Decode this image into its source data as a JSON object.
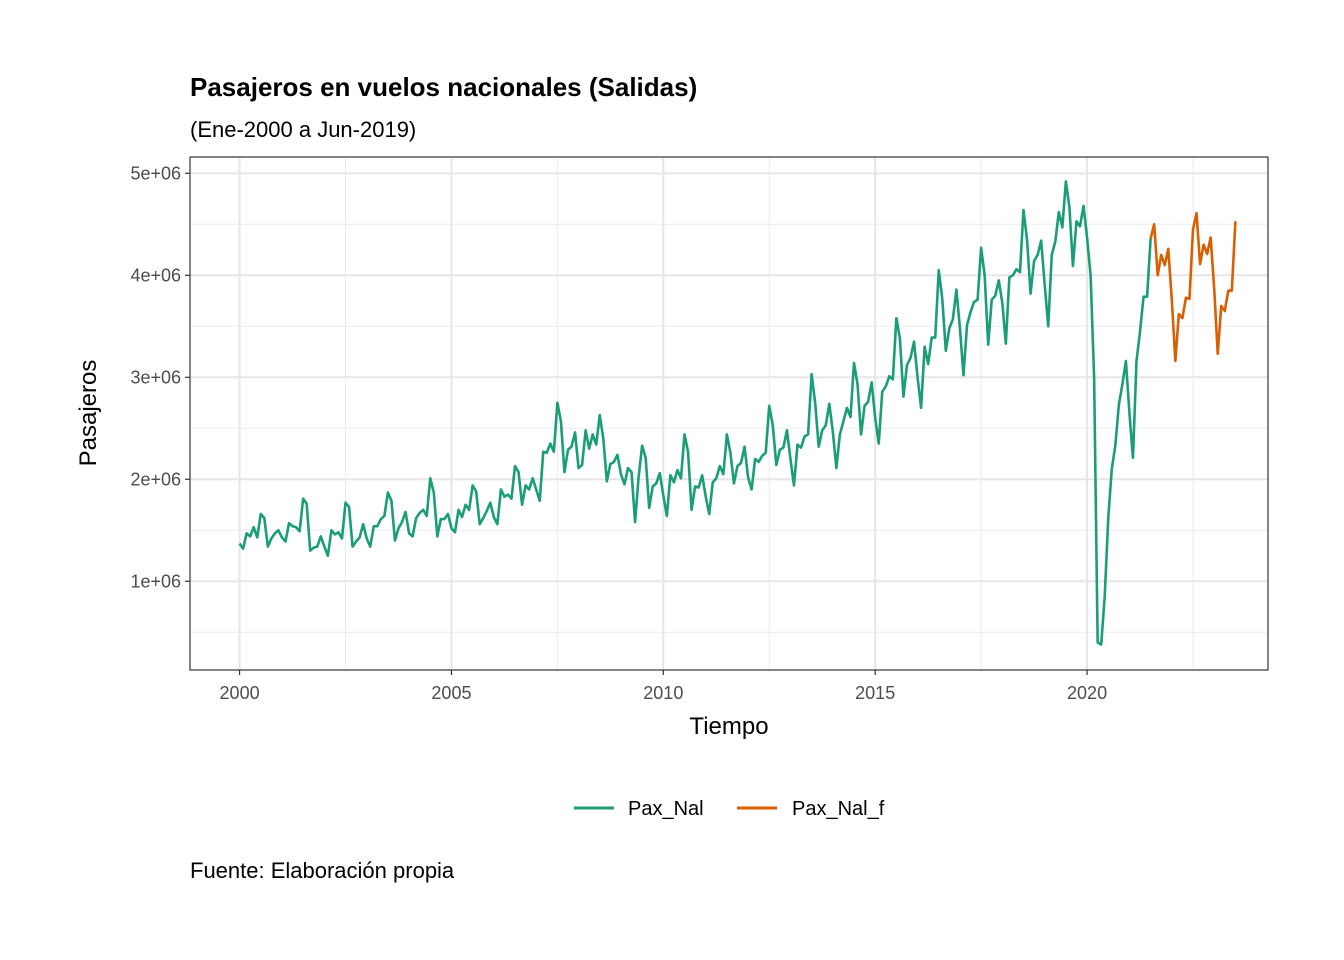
{
  "chart_data": {
    "type": "line",
    "title": "Pasajeros en vuelos nacionales (Salidas)",
    "subtitle": "(Ene-2000 a Jun-2019)",
    "xlabel": "Tiempo",
    "ylabel": "Pasajeros",
    "caption": "Fuente: Elaboración propia",
    "xlim": [
      1998.83,
      2024.27
    ],
    "ylim": [
      130000,
      5160000
    ],
    "x_ticks": [
      2000,
      2005,
      2010,
      2015,
      2020
    ],
    "x_tick_labels": [
      "2000",
      "2005",
      "2010",
      "2015",
      "2020"
    ],
    "y_ticks": [
      1000000,
      2000000,
      3000000,
      4000000,
      5000000
    ],
    "y_tick_labels": [
      "1e+06",
      "2e+06",
      "3e+06",
      "4e+06",
      "5e+06"
    ],
    "grid": true,
    "legend_position": "bottom",
    "series": [
      {
        "name": "Pax_Nal",
        "color": "#1b9e77",
        "x_start": 2000.0,
        "step": 0.083333,
        "values": [
          1370000,
          1320000,
          1470000,
          1440000,
          1530000,
          1430000,
          1660000,
          1620000,
          1340000,
          1420000,
          1470000,
          1500000,
          1430000,
          1390000,
          1570000,
          1540000,
          1530000,
          1490000,
          1810000,
          1760000,
          1300000,
          1330000,
          1340000,
          1440000,
          1340000,
          1250000,
          1500000,
          1460000,
          1480000,
          1420000,
          1770000,
          1730000,
          1340000,
          1390000,
          1430000,
          1560000,
          1420000,
          1340000,
          1540000,
          1540000,
          1610000,
          1640000,
          1870000,
          1790000,
          1400000,
          1520000,
          1580000,
          1680000,
          1470000,
          1440000,
          1620000,
          1670000,
          1700000,
          1640000,
          2010000,
          1870000,
          1440000,
          1610000,
          1610000,
          1660000,
          1520000,
          1480000,
          1700000,
          1630000,
          1750000,
          1700000,
          1940000,
          1880000,
          1560000,
          1620000,
          1690000,
          1770000,
          1630000,
          1560000,
          1900000,
          1830000,
          1850000,
          1810000,
          2130000,
          2070000,
          1750000,
          1940000,
          1900000,
          2010000,
          1900000,
          1790000,
          2270000,
          2260000,
          2350000,
          2270000,
          2750000,
          2570000,
          2070000,
          2290000,
          2320000,
          2460000,
          2110000,
          2140000,
          2480000,
          2300000,
          2440000,
          2340000,
          2630000,
          2400000,
          1980000,
          2150000,
          2170000,
          2240000,
          2050000,
          1950000,
          2110000,
          2070000,
          1580000,
          2020000,
          2330000,
          2210000,
          1720000,
          1930000,
          1960000,
          2060000,
          1840000,
          1640000,
          2040000,
          1970000,
          2090000,
          2010000,
          2440000,
          2270000,
          1700000,
          1930000,
          1920000,
          2040000,
          1830000,
          1660000,
          1970000,
          2010000,
          2130000,
          2050000,
          2440000,
          2260000,
          1960000,
          2130000,
          2160000,
          2320000,
          2020000,
          1900000,
          2200000,
          2170000,
          2230000,
          2260000,
          2720000,
          2530000,
          2140000,
          2290000,
          2310000,
          2480000,
          2200000,
          1940000,
          2340000,
          2310000,
          2420000,
          2440000,
          3030000,
          2750000,
          2320000,
          2480000,
          2530000,
          2740000,
          2470000,
          2110000,
          2440000,
          2570000,
          2700000,
          2610000,
          3140000,
          2930000,
          2440000,
          2720000,
          2760000,
          2950000,
          2600000,
          2350000,
          2860000,
          2910000,
          3010000,
          2980000,
          3580000,
          3380000,
          2810000,
          3120000,
          3190000,
          3350000,
          3000000,
          2700000,
          3300000,
          3130000,
          3390000,
          3390000,
          4050000,
          3770000,
          3260000,
          3480000,
          3570000,
          3860000,
          3480000,
          3020000,
          3510000,
          3640000,
          3740000,
          3760000,
          4270000,
          4000000,
          3320000,
          3760000,
          3800000,
          3950000,
          3730000,
          3330000,
          3980000,
          4000000,
          4060000,
          4030000,
          4640000,
          4350000,
          3820000,
          4140000,
          4200000,
          4340000,
          3910000,
          3500000,
          4200000,
          4330000,
          4620000,
          4470000,
          4920000,
          4670000,
          4090000,
          4530000,
          4480000,
          4680000,
          4370000,
          4000000,
          3000000,
          400000,
          380000,
          850000,
          1620000,
          2100000,
          2330000,
          2730000,
          2930000,
          3160000,
          2650000,
          2210000,
          3160000,
          3450000,
          3790000,
          3790000,
          4360000
        ]
      },
      {
        "name": "Pax_Nal_f",
        "color": "#d95f02",
        "x_start": 2021.5,
        "step": 0.083333,
        "values": [
          4360000,
          4500000,
          4000000,
          4200000,
          4100000,
          4260000,
          3760000,
          3160000,
          3620000,
          3580000,
          3780000,
          3770000,
          4450000,
          4610000,
          4110000,
          4300000,
          4210000,
          4370000,
          3870000,
          3230000,
          3700000,
          3650000,
          3850000,
          3850000,
          4530000
        ]
      }
    ]
  }
}
